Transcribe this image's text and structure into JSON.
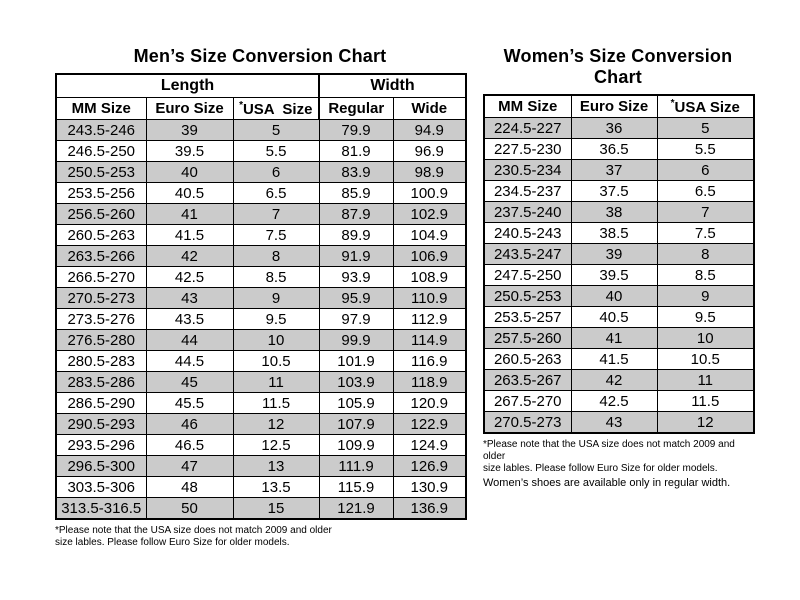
{
  "colors": {
    "background": "#ffffff",
    "text": "#000000",
    "border": "#000000",
    "shaded_row": "#cbcbcb",
    "plain_row": "#ffffff"
  },
  "mens_chart": {
    "title": "Men’s Size Conversion Chart",
    "group_headers": {
      "length": "Length",
      "width": "Width"
    },
    "usa_asterisk": "*",
    "columns": {
      "mm": "MM Size",
      "euro": "Euro Size",
      "usa": "USA  Size",
      "regular": "Regular",
      "wide": "Wide"
    },
    "rows": [
      [
        "243.5-246",
        "39",
        "5",
        "79.9",
        "94.9"
      ],
      [
        "246.5-250",
        "39.5",
        "5.5",
        "81.9",
        "96.9"
      ],
      [
        "250.5-253",
        "40",
        "6",
        "83.9",
        "98.9"
      ],
      [
        "253.5-256",
        "40.5",
        "6.5",
        "85.9",
        "100.9"
      ],
      [
        "256.5-260",
        "41",
        "7",
        "87.9",
        "102.9"
      ],
      [
        "260.5-263",
        "41.5",
        "7.5",
        "89.9",
        "104.9"
      ],
      [
        "263.5-266",
        "42",
        "8",
        "91.9",
        "106.9"
      ],
      [
        "266.5-270",
        "42.5",
        "8.5",
        "93.9",
        "108.9"
      ],
      [
        "270.5-273",
        "43",
        "9",
        "95.9",
        "110.9"
      ],
      [
        "273.5-276",
        "43.5",
        "9.5",
        "97.9",
        "112.9"
      ],
      [
        "276.5-280",
        "44",
        "10",
        "99.9",
        "114.9"
      ],
      [
        "280.5-283",
        "44.5",
        "10.5",
        "101.9",
        "116.9"
      ],
      [
        "283.5-286",
        "45",
        "11",
        "103.9",
        "118.9"
      ],
      [
        "286.5-290",
        "45.5",
        "11.5",
        "105.9",
        "120.9"
      ],
      [
        "290.5-293",
        "46",
        "12",
        "107.9",
        "122.9"
      ],
      [
        "293.5-296",
        "46.5",
        "12.5",
        "109.9",
        "124.9"
      ],
      [
        "296.5-300",
        "47",
        "13",
        "111.9",
        "126.9"
      ],
      [
        "303.5-306",
        "48",
        "13.5",
        "115.9",
        "130.9"
      ],
      [
        "313.5-316.5",
        "50",
        "15",
        "121.9",
        "136.9"
      ]
    ],
    "footnote": "*Please note that the USA size does not match 2009 and older\nsize lables. Please follow Euro Size for older models."
  },
  "womens_chart": {
    "title": "Women’s Size Conversion Chart",
    "usa_asterisk": "*",
    "columns": {
      "mm": "MM Size",
      "euro": "Euro Size",
      "usa": "USA Size"
    },
    "rows": [
      [
        "224.5-227",
        "36",
        "5"
      ],
      [
        "227.5-230",
        "36.5",
        "5.5"
      ],
      [
        "230.5-234",
        "37",
        "6"
      ],
      [
        "234.5-237",
        "37.5",
        "6.5"
      ],
      [
        "237.5-240",
        "38",
        "7"
      ],
      [
        "240.5-243",
        "38.5",
        "7.5"
      ],
      [
        "243.5-247",
        "39",
        "8"
      ],
      [
        "247.5-250",
        "39.5",
        "8.5"
      ],
      [
        "250.5-253",
        "40",
        "9"
      ],
      [
        "253.5-257",
        "40.5",
        "9.5"
      ],
      [
        "257.5-260",
        "41",
        "10"
      ],
      [
        "260.5-263",
        "41.5",
        "10.5"
      ],
      [
        "263.5-267",
        "42",
        "11"
      ],
      [
        "267.5-270",
        "42.5",
        "11.5"
      ],
      [
        "270.5-273",
        "43",
        "12"
      ]
    ],
    "footnote": "*Please note that the USA size does not match 2009 and older\nsize lables. Please follow Euro Size for older models.",
    "width_note": "Women’s shoes are available only in regular width."
  }
}
